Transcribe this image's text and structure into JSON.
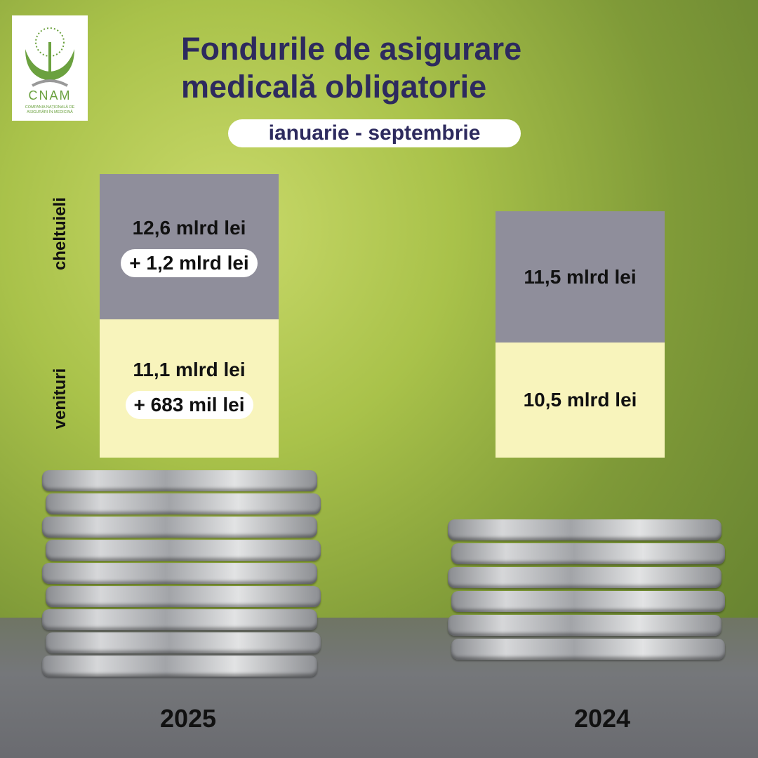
{
  "logo": {
    "name": "CNAM",
    "tagline": "COMPANIA NAȚIONALĂ DE ASIGURĂRI ÎN MEDICINĂ"
  },
  "header": {
    "title_lines": [
      "Fondurile de asigurare",
      "medicală obligatorie"
    ],
    "period": "ianuarie - septembrie"
  },
  "row_labels": [
    "cheltuieli",
    "venituri"
  ],
  "columns": [
    {
      "year": "2025",
      "expenses": "12,6 mlrd lei",
      "expenses_change": "+ 1,2 mlrd lei",
      "revenues": "11,1 mlrd lei",
      "revenues_change": "+ 683 mil lei"
    },
    {
      "year": "2024",
      "expenses": "11,5 mlrd lei",
      "revenues": "10,5 mlrd lei"
    }
  ]
}
